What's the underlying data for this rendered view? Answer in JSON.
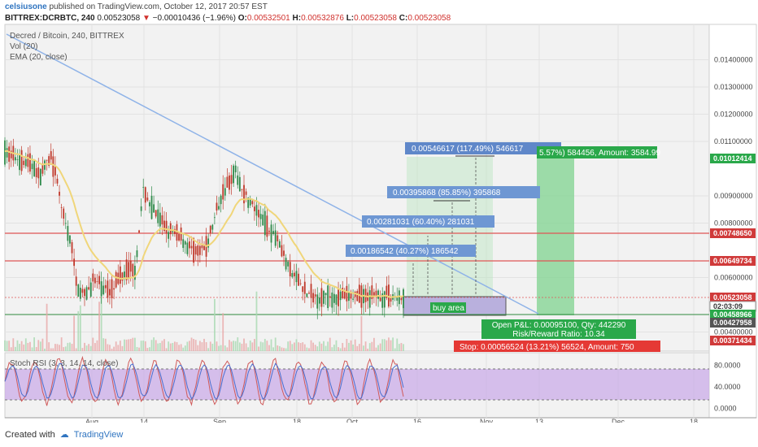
{
  "header": {
    "user": "celsiusone",
    "published": "published on TradingView.com, October 12, 2017 20:57 EST",
    "symbol": "BITTREX:DCRBTC, 240",
    "last": "0.00523058",
    "change": "−0.00010436 (−1.96%)",
    "o_label": "O:",
    "o": "0.00532501",
    "h_label": "H:",
    "h": "0.00532876",
    "l_label": "L:",
    "l": "0.00523058",
    "c_label": "C:",
    "c": "0.00523058"
  },
  "legend": {
    "title": "Decred / Bitcoin, 240, BITTREX",
    "vol": "Vol (20)",
    "ema": "EMA (20, close)"
  },
  "footer": {
    "created": "Created with",
    "brand": "TradingView"
  },
  "colors": {
    "up": "#2f8a4a",
    "down": "#c0392b",
    "ema": "#f0d67a",
    "trend": "#8fb3e8",
    "hline": "#e05555",
    "green_zone": "#7fd38f",
    "buy_zone": "#b9b0dd",
    "rsi_band": "#c9a8e8"
  },
  "chart_data": [
    {
      "type": "line",
      "title": "Decred / Bitcoin, 240, BITTREX",
      "x_tick_labels": [
        "Aug",
        "14",
        "Sep",
        "18",
        "Oct",
        "16",
        "Nov",
        "13",
        "Dec",
        "18"
      ],
      "y_tick_labels": [
        "0.01400000",
        "0.01300000",
        "0.01200000",
        "0.01100000",
        "0.00900000",
        "0.00800000",
        "0.00600000",
        "0.00400000"
      ],
      "ylim": [
        0.0033,
        0.0153
      ],
      "series": [
        {
          "x": [
            0,
            14,
            16,
            20,
            22,
            26,
            28,
            32,
            34,
            38,
            42,
            50,
            56,
            58,
            62,
            66,
            70,
            74,
            78,
            84,
            88,
            92,
            96,
            100,
            104,
            106,
            110,
            114,
            116,
            120,
            126,
            130,
            134,
            136,
            140,
            144,
            148,
            152,
            156,
            160,
            164,
            168,
            170,
            174,
            178,
            184,
            186,
            190
          ],
          "y": [
            0.0106,
            0.0101,
            0.0097,
            0.0102,
            0.0104,
            0.0091,
            0.0082,
            0.0071,
            0.0058,
            0.0053,
            0.0059,
            0.0055,
            0.0061,
            0.0063,
            0.0063,
            0.0092,
            0.0086,
            0.0081,
            0.0077,
            0.0075,
            0.0071,
            0.0069,
            0.0071,
            0.0082,
            0.0092,
            0.0094,
            0.0099,
            0.0091,
            0.0089,
            0.0084,
            0.0078,
            0.0075,
            0.0066,
            0.0062,
            0.0059,
            0.0054,
            0.0053,
            0.0053,
            0.0053,
            0.0053,
            0.0053,
            0.0053,
            0.0053,
            0.0053,
            0.0053,
            0.0053,
            0.0053,
            0.00523
          ]
        }
      ],
      "price_tags": [
        {
          "label": "0.01012414",
          "color": "#2aa84a"
        },
        {
          "label": "0.00748650",
          "color": "#d03a3a"
        },
        {
          "label": "0.00649734",
          "color": "#d03a3a"
        },
        {
          "label": "0.00523058",
          "color": "#d03a3a"
        },
        {
          "label": "02:03:09",
          "color": "#ffffff"
        },
        {
          "label": "0.00458966",
          "color": "#2aa84a"
        },
        {
          "label": "0.00427958",
          "color": "#555555"
        },
        {
          "label": "0.00371434",
          "color": "#d03a3a"
        }
      ],
      "annotations": [
        "0.00546617 (117.49%) 546617",
        "0.00395868 (85.85%) 395868",
        "0.00281031 (60.40%) 281031",
        "0.00186542 (40.27%) 186542",
        "buy area",
        "5.57%) 584456, Amount: 3584.99",
        "Open P&L: 0.00095100, Qty: 442290",
        "Risk/Reward Ratio: 10.34",
        "Stop: 0.00056524 (13.21%) 56524, Amount: 750"
      ],
      "green_hline": 0.00458966,
      "red_hlines": [
        0.0074865,
        0.00649734
      ]
    },
    {
      "type": "line",
      "title": "Stoch RSI (3, 3, 14, 14, close)",
      "y_tick_labels": [
        "80.0000",
        "40.0000",
        "0.0000"
      ],
      "ylim": [
        -5,
        100
      ],
      "band": [
        20,
        80
      ]
    }
  ]
}
